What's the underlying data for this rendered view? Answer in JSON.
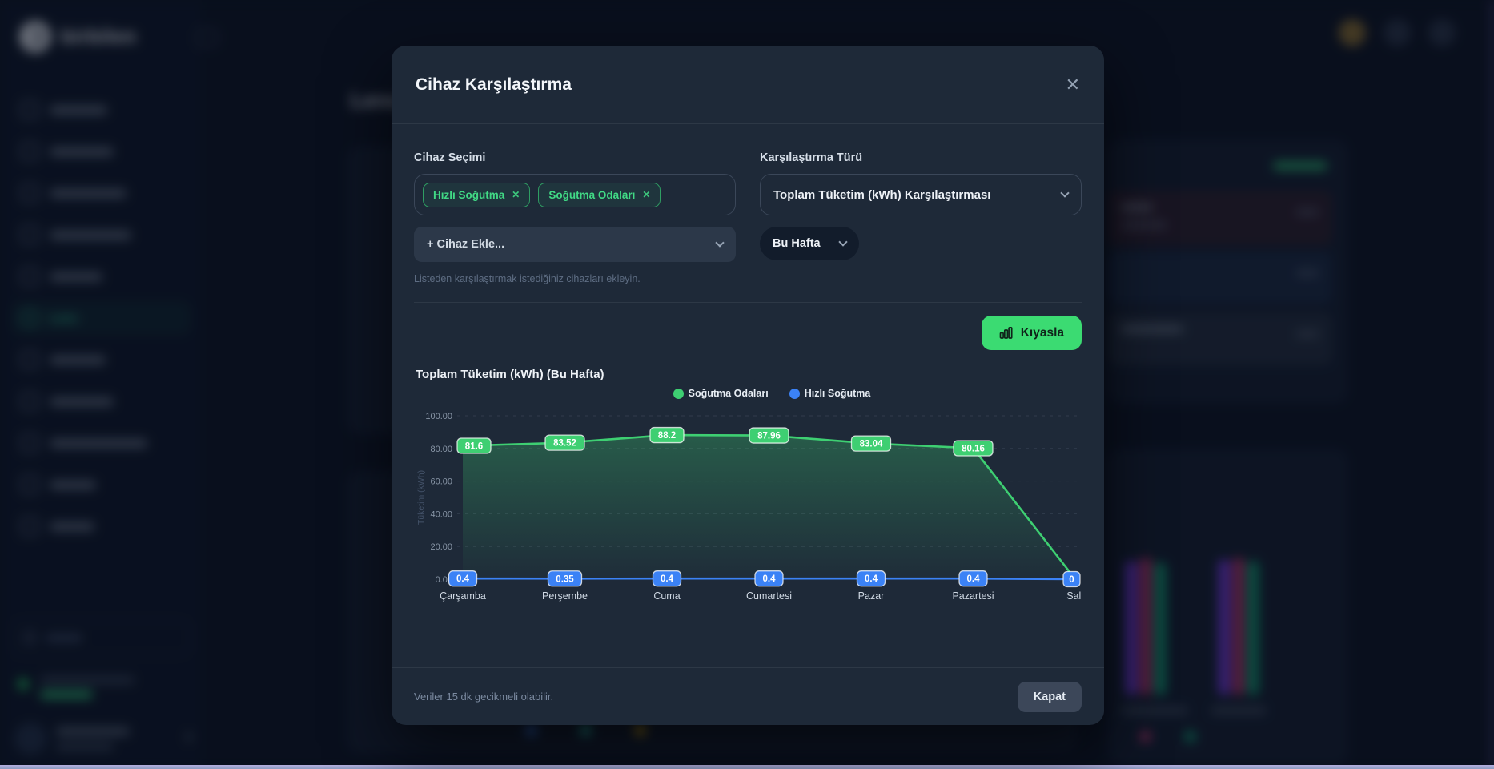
{
  "background": {
    "brand": "birbilen",
    "page_title": "Lens",
    "nav_active_label": "Lens"
  },
  "modal": {
    "title": "Cihaz Karşılaştırma",
    "close_icon": "✕",
    "device_selection": {
      "label": "Cihaz Seçimi",
      "chips": [
        {
          "label": "Hızlı Soğutma",
          "remove_icon": "✕"
        },
        {
          "label": "Soğutma Odaları",
          "remove_icon": "✕"
        }
      ],
      "add_device_placeholder": "+ Cihaz Ekle...",
      "helper_text": "Listeden karşılaştırmak istediğiniz cihazları ekleyin."
    },
    "comparison_type": {
      "label": "Karşılaştırma Türü",
      "selected": "Toplam Tüketim (kWh) Karşılaştırması",
      "period_selected": "Bu Hafta"
    },
    "compare_button": "Kıyasla",
    "footer": {
      "note": "Veriler 15 dk gecikmeli olabilir.",
      "close_button": "Kapat"
    }
  },
  "chart_data": {
    "type": "line",
    "title": "Toplam Tüketim (kWh) (Bu Hafta)",
    "ylabel": "Tüketim (kWh)",
    "categories": [
      "Çarşamba",
      "Perşembe",
      "Cuma",
      "Cumartesi",
      "Pazar",
      "Pazartesi",
      "Salı"
    ],
    "series": [
      {
        "name": "Soğutma Odaları",
        "color": "#3ecf72",
        "area": true,
        "values": [
          81.6,
          83.52,
          88.2,
          87.96,
          83.04,
          80.16,
          0
        ],
        "labels": [
          "81.6",
          "83.52",
          "88.2",
          "87.96",
          "83.04",
          "80.16",
          null
        ]
      },
      {
        "name": "Hızlı Soğutma",
        "color": "#3b82f6",
        "area": false,
        "values": [
          0.4,
          0.35,
          0.4,
          0.4,
          0.4,
          0.4,
          0
        ],
        "labels": [
          "0.4",
          "0.35",
          "0.4",
          "0.4",
          "0.4",
          "0.4",
          "0"
        ]
      }
    ],
    "ylim": [
      0,
      100
    ],
    "yticks": [
      "0.00",
      "20.00",
      "40.00",
      "60.00",
      "80.00",
      "100.00"
    ],
    "grid": true,
    "legend_position": "top-center"
  },
  "colors": {
    "accent_green": "#3bdb72",
    "series_green": "#3ecf72",
    "series_blue": "#3b82f6",
    "modal_bg": "#1e2938",
    "page_bg": "#0c1322"
  }
}
